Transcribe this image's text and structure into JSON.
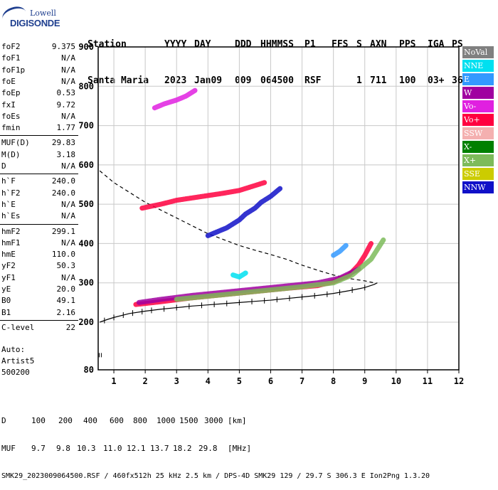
{
  "logo": {
    "line1": "Lowell",
    "line2": "DIGISONDE"
  },
  "header": {
    "labels": [
      "Station",
      "YYYY",
      "DAY",
      "DDD",
      "HHMMSS",
      "P1",
      "FFS",
      "S",
      "AXN",
      "PPS",
      "IGA",
      "PS"
    ],
    "values": [
      "Santa Maria",
      "2023",
      "Jan09",
      "009",
      "064500",
      "RSF",
      "",
      "1",
      "711",
      "100",
      "03+",
      "36"
    ]
  },
  "params": [
    {
      "label": "foF2",
      "value": "9.375"
    },
    {
      "label": "foF1",
      "value": "N/A"
    },
    {
      "label": "foF1p",
      "value": "N/A"
    },
    {
      "label": "foE",
      "value": "N/A"
    },
    {
      "label": "foEp",
      "value": "0.53"
    },
    {
      "label": "fxI",
      "value": "9.72"
    },
    {
      "label": "foEs",
      "value": "N/A"
    },
    {
      "label": "fmin",
      "value": "1.77"
    },
    {
      "label": "MUF(D)",
      "value": "29.83"
    },
    {
      "label": "M(D)",
      "value": "3.18"
    },
    {
      "label": "D",
      "value": "N/A"
    },
    {
      "label": "h`F",
      "value": "240.0"
    },
    {
      "label": "h`F2",
      "value": "240.0"
    },
    {
      "label": "h`E",
      "value": "N/A"
    },
    {
      "label": "h`Es",
      "value": "N/A"
    },
    {
      "label": "hmF2",
      "value": "299.1"
    },
    {
      "label": "hmF1",
      "value": "N/A"
    },
    {
      "label": "hmE",
      "value": "110.0"
    },
    {
      "label": "yF2",
      "value": "50.3"
    },
    {
      "label": "yF1",
      "value": "N/A"
    },
    {
      "label": "yE",
      "value": "20.0"
    },
    {
      "label": "B0",
      "value": "49.1"
    },
    {
      "label": "B1",
      "value": "2.16"
    },
    {
      "label": "C-level",
      "value": "22"
    }
  ],
  "auto": {
    "line1": "Auto:",
    "line2": "Artist5",
    "line3": "500200"
  },
  "legend": [
    {
      "label": "NoVal",
      "color": "#808080"
    },
    {
      "label": "NNE",
      "color": "#00e0f0"
    },
    {
      "label": "E",
      "color": "#3399ff"
    },
    {
      "label": "W",
      "color": "#a000a0"
    },
    {
      "label": "Vo-",
      "color": "#e020e0"
    },
    {
      "label": "Vo+",
      "color": "#ff0040"
    },
    {
      "label": "SSW",
      "color": "#f4b0b0"
    },
    {
      "label": "X-",
      "color": "#008000"
    },
    {
      "label": "X+",
      "color": "#7dbb5a"
    },
    {
      "label": "SSE",
      "color": "#cccc00"
    },
    {
      "label": "NNW",
      "color": "#1010c8"
    }
  ],
  "footer": {
    "d_label": "D",
    "d_values": [
      "100",
      "200",
      "400",
      "600",
      "800",
      "1000",
      "1500",
      "3000",
      "[km]"
    ],
    "muf_label": "MUF",
    "muf_values": [
      "9.7",
      "9.8",
      "10.3",
      "11.0",
      "12.1",
      "13.7",
      "18.2",
      "29.8",
      "[MHz]"
    ],
    "info": "SMK29_2023009064500.RSF / 460fx512h 25 kHz 2.5 km / DPS-4D SMK29 129 / 29.7 S 306.3 E Ion2Png 1.3.20"
  },
  "chart_data": {
    "type": "scatter",
    "title": "",
    "xlabel": "",
    "ylabel": "",
    "xlim": [
      0.5,
      12
    ],
    "ylim": [
      80,
      900
    ],
    "x_ticks": [
      1,
      2,
      3,
      4,
      5,
      6,
      7,
      8,
      9,
      10,
      11,
      12
    ],
    "y_ticks": [
      80,
      200,
      300,
      400,
      500,
      600,
      700,
      800,
      900
    ],
    "grid": true,
    "legend_position": "right",
    "series": [
      {
        "color": "#ff0040",
        "trace": [
          [
            1.7,
            245
          ],
          [
            2.5,
            252
          ],
          [
            3.5,
            262
          ],
          [
            4.5,
            270
          ],
          [
            5.5,
            278
          ],
          [
            6.5,
            286
          ],
          [
            7.5,
            293
          ],
          [
            8.0,
            303
          ],
          [
            8.5,
            320
          ],
          [
            8.8,
            345
          ],
          [
            9.0,
            370
          ],
          [
            9.2,
            400
          ]
        ]
      },
      {
        "color": "#a000a0",
        "trace": [
          [
            1.8,
            250
          ],
          [
            2.5,
            258
          ],
          [
            3.5,
            268
          ],
          [
            4.5,
            276
          ],
          [
            5.5,
            284
          ],
          [
            6.5,
            292
          ],
          [
            7.5,
            300
          ],
          [
            8.2,
            312
          ],
          [
            8.8,
            335
          ]
        ]
      },
      {
        "color": "#7dbb5a",
        "trace": [
          [
            3.0,
            258
          ],
          [
            4.0,
            266
          ],
          [
            5.0,
            274
          ],
          [
            6.0,
            282
          ],
          [
            7.0,
            290
          ],
          [
            8.0,
            300
          ],
          [
            8.6,
            320
          ],
          [
            9.2,
            360
          ],
          [
            9.6,
            410
          ]
        ]
      },
      {
        "color": "#ff0040",
        "trace": [
          [
            1.9,
            490
          ],
          [
            2.5,
            500
          ],
          [
            3.0,
            510
          ],
          [
            3.5,
            516
          ],
          [
            4.0,
            522
          ],
          [
            4.5,
            528
          ],
          [
            5.0,
            535
          ],
          [
            5.4,
            545
          ],
          [
            5.8,
            555
          ]
        ]
      },
      {
        "color": "#1010c8",
        "trace": [
          [
            4.0,
            420
          ],
          [
            4.3,
            430
          ],
          [
            4.6,
            440
          ],
          [
            5.0,
            460
          ],
          [
            5.2,
            475
          ],
          [
            5.5,
            490
          ],
          [
            5.7,
            505
          ],
          [
            6.0,
            520
          ],
          [
            6.3,
            540
          ]
        ]
      },
      {
        "color": "#e020e0",
        "trace": [
          [
            2.3,
            745
          ],
          [
            2.6,
            755
          ],
          [
            3.0,
            765
          ],
          [
            3.3,
            775
          ],
          [
            3.6,
            790
          ]
        ]
      },
      {
        "color": "#00e0f0",
        "trace": [
          [
            4.8,
            320
          ],
          [
            5.0,
            315
          ],
          [
            5.2,
            325
          ]
        ]
      },
      {
        "color": "#3399ff",
        "trace": [
          [
            8.0,
            370
          ],
          [
            8.2,
            380
          ],
          [
            8.4,
            395
          ]
        ]
      }
    ],
    "profile_dashed": [
      [
        0.55,
        585
      ],
      [
        1.0,
        555
      ],
      [
        1.5,
        530
      ],
      [
        2.0,
        505
      ],
      [
        2.5,
        485
      ],
      [
        3.0,
        465
      ],
      [
        3.5,
        445
      ],
      [
        4.0,
        425
      ],
      [
        4.5,
        410
      ],
      [
        5.0,
        395
      ],
      [
        5.5,
        383
      ],
      [
        6.0,
        372
      ],
      [
        6.5,
        360
      ],
      [
        7.0,
        345
      ],
      [
        7.5,
        332
      ],
      [
        8.0,
        320
      ],
      [
        8.5,
        311
      ],
      [
        9.0,
        305
      ],
      [
        9.3,
        300
      ]
    ],
    "profile_solid": [
      [
        0.55,
        200
      ],
      [
        0.8,
        207
      ],
      [
        1.0,
        212
      ],
      [
        1.5,
        222
      ],
      [
        2.0,
        228
      ],
      [
        2.5,
        233
      ],
      [
        3.0,
        237
      ],
      [
        3.5,
        241
      ],
      [
        4.0,
        244
      ],
      [
        4.5,
        247
      ],
      [
        5.0,
        250
      ],
      [
        5.5,
        253
      ],
      [
        6.0,
        256
      ],
      [
        6.5,
        260
      ],
      [
        7.0,
        264
      ],
      [
        7.5,
        268
      ],
      [
        8.0,
        273
      ],
      [
        8.5,
        280
      ],
      [
        9.0,
        288
      ],
      [
        9.3,
        296
      ],
      [
        9.4,
        300
      ]
    ],
    "profile_solid_ticks_at_x": [
      0.7,
      1.0,
      1.3,
      1.6,
      1.9,
      2.2,
      2.6,
      3.0,
      3.4,
      3.8,
      4.2,
      4.6,
      5.0,
      5.4,
      5.8,
      6.2,
      6.6,
      7.0,
      7.4,
      7.8,
      8.2,
      8.6,
      9.0
    ],
    "isolated_marker": [
      0.6,
      117
    ]
  }
}
